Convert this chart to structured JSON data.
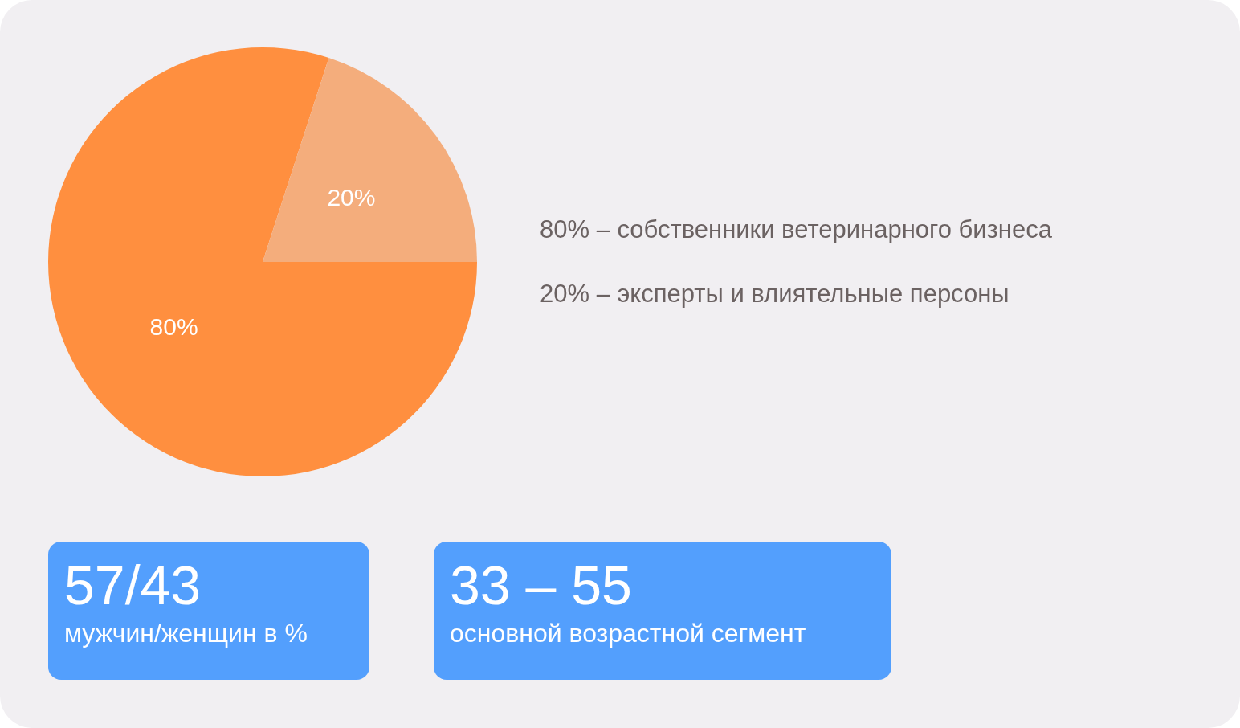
{
  "chart_data": {
    "type": "pie",
    "categories": [
      "собственники ветеринарного бизнеса",
      "эксперты и влиятельные персоны"
    ],
    "values": [
      80,
      20
    ],
    "colors": [
      "#ff8f3f",
      "#f4ad7c"
    ],
    "value_labels": [
      "80%",
      "20%"
    ],
    "annotations": [
      "57/43",
      "мужчин/женщин в %",
      "33 – 55",
      "основной возрастной сегмент"
    ]
  }
}
